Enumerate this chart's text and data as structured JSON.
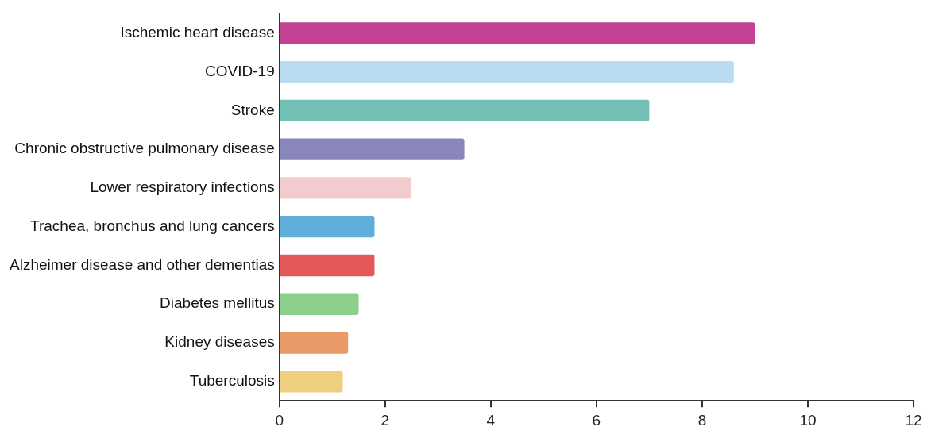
{
  "chart_data": {
    "type": "bar",
    "orientation": "horizontal",
    "categories": [
      "Ischemic heart disease",
      "COVID-19",
      "Stroke",
      "Chronic obstructive pulmonary disease",
      "Lower respiratory infections",
      "Trachea, bronchus and lung cancers",
      "Alzheimer disease and other dementias",
      "Diabetes mellitus",
      "Kidney diseases",
      "Tuberculosis"
    ],
    "values": [
      9,
      8.6,
      7,
      3.5,
      2.5,
      1.8,
      1.8,
      1.5,
      1.3,
      1.2
    ],
    "colors": [
      "#c44193",
      "#b9dcf3",
      "#72bfb6",
      "#8886bb",
      "#f2cccc",
      "#5eaedb",
      "#e55859",
      "#8bcf8b",
      "#e89b66",
      "#efcf7d"
    ],
    "xlim": [
      0,
      12
    ],
    "xticks": [
      0,
      2,
      4,
      6,
      8,
      10,
      12
    ],
    "grid": false,
    "legend": false
  }
}
